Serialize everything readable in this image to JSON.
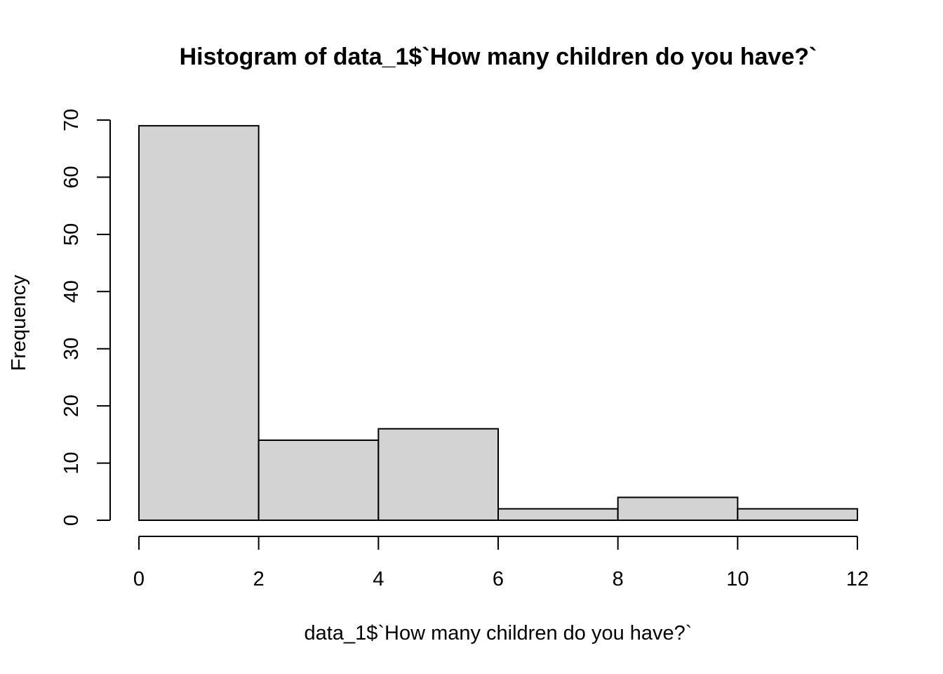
{
  "chart_data": {
    "type": "bar",
    "title": "Histogram of data_1$`How many children do you have?`",
    "xlabel": "data_1$`How many children do you have?`",
    "ylabel": "Frequency",
    "bins": [
      {
        "start": 0,
        "end": 2,
        "count": 69
      },
      {
        "start": 2,
        "end": 4,
        "count": 14
      },
      {
        "start": 4,
        "end": 6,
        "count": 16
      },
      {
        "start": 6,
        "end": 8,
        "count": 2
      },
      {
        "start": 8,
        "end": 10,
        "count": 4
      },
      {
        "start": 10,
        "end": 12,
        "count": 2
      }
    ],
    "xlim": [
      0,
      12
    ],
    "ylim": [
      0,
      70
    ],
    "x_ticks": [
      0,
      2,
      4,
      6,
      8,
      10,
      12
    ],
    "y_ticks": [
      0,
      10,
      20,
      30,
      40,
      50,
      60,
      70
    ],
    "grid": false,
    "bar_fill": "#d3d3d3",
    "bar_stroke": "#000000"
  }
}
